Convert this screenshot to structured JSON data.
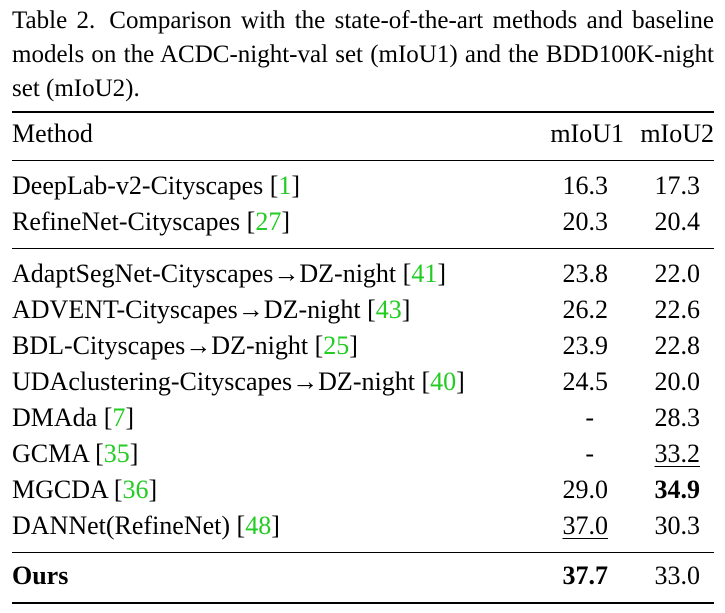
{
  "caption": {
    "label": "Table 2.",
    "text": "Comparison with the state-of-the-art methods and baseline models on the ACDC-night-val set (mIoU1) and the BDD100K-night set (mIoU2)."
  },
  "header": {
    "method": "Method",
    "m1": "mIoU1",
    "m2": "mIoU2"
  },
  "rows": [
    {
      "name": "DeepLab-v2-Cityscapes",
      "ref": "1",
      "m1": "16.3",
      "m2": "17.3"
    },
    {
      "name": "RefineNet-Cityscapes",
      "ref": "27",
      "m1": "20.3",
      "m2": "20.4"
    },
    {
      "name": "AdaptSegNet-Cityscapes→DZ-night",
      "ref": "41",
      "m1": "23.8",
      "m2": "22.0"
    },
    {
      "name": "ADVENT-Cityscapes→DZ-night",
      "ref": "43",
      "m1": "26.2",
      "m2": "22.6"
    },
    {
      "name": "BDL-Cityscapes→DZ-night",
      "ref": "25",
      "m1": "23.9",
      "m2": "22.8"
    },
    {
      "name": "UDAclustering-Cityscapes→DZ-night",
      "ref": "40",
      "m1": "24.5",
      "m2": "20.0"
    },
    {
      "name": "DMAda",
      "ref": "7",
      "m1": "-",
      "m2": "28.3"
    },
    {
      "name": "GCMA",
      "ref": "35",
      "m1": "-",
      "m2": "33.2"
    },
    {
      "name": "MGCDA",
      "ref": "36",
      "m1": "29.0",
      "m2": "34.9"
    },
    {
      "name": "DANNet(RefineNet)",
      "ref": "48",
      "m1": "37.0",
      "m2": "30.3"
    },
    {
      "name": "Ours",
      "ref": "",
      "m1": "37.7",
      "m2": "33.0"
    }
  ],
  "colors": {
    "text": "#000000",
    "citation": "#22cc22"
  }
}
